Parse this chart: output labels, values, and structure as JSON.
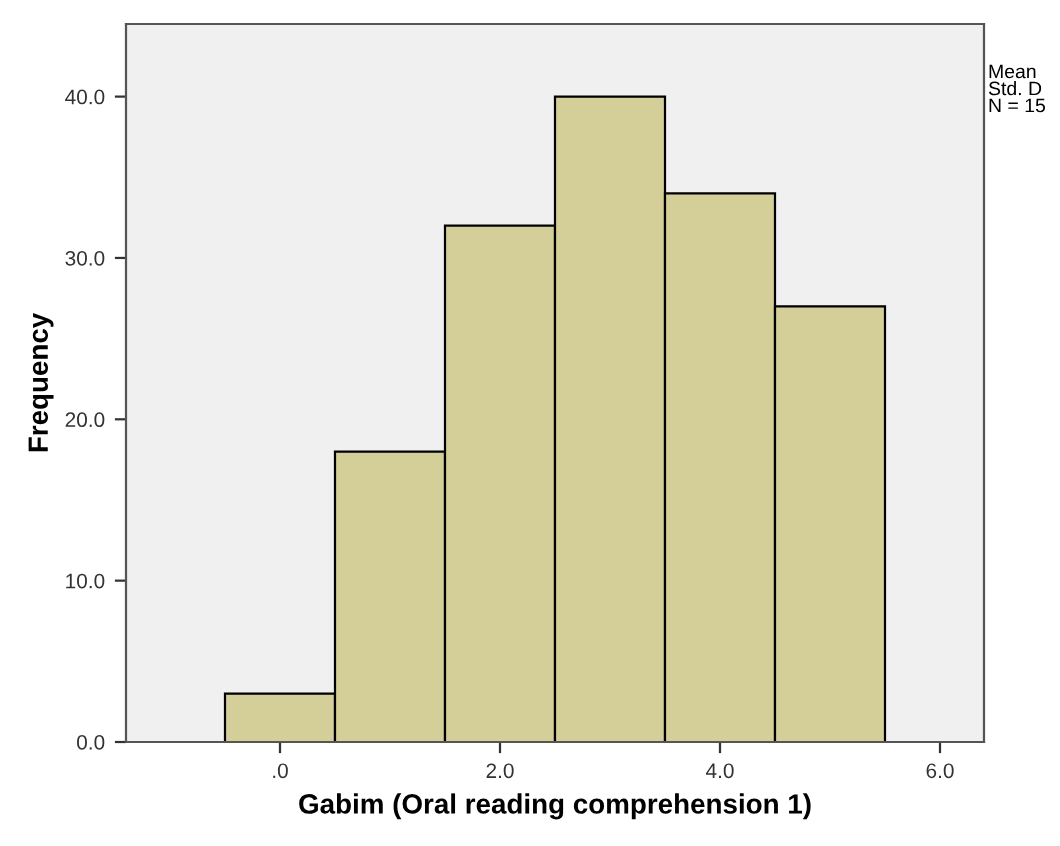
{
  "chart_data": {
    "type": "histogram",
    "xlabel": "Gabim (Oral reading comprehension 1)",
    "ylabel": "Frequency",
    "bins": [
      -0.5,
      0.5,
      1.5,
      2.5,
      3.5,
      4.5,
      5.5
    ],
    "values": [
      3,
      18,
      32,
      40,
      34,
      27
    ],
    "color": "#d4cf98",
    "xlim": [
      -1.4,
      6.4
    ],
    "ylim": [
      0,
      44.5
    ],
    "xticks": [
      {
        "value": 0,
        "label": ".0"
      },
      {
        "value": 2,
        "label": "2.0"
      },
      {
        "value": 4,
        "label": "4.0"
      },
      {
        "value": 6,
        "label": "6.0"
      }
    ],
    "yticks": [
      {
        "value": 0,
        "label": "0.0"
      },
      {
        "value": 10,
        "label": "10.0"
      },
      {
        "value": 20,
        "label": "20.0"
      },
      {
        "value": 30,
        "label": "30.0"
      },
      {
        "value": 40,
        "label": "40.0"
      }
    ],
    "annotations": [
      "Mean",
      "Std. D",
      "N = 15"
    ],
    "grid": false,
    "legend": false
  }
}
